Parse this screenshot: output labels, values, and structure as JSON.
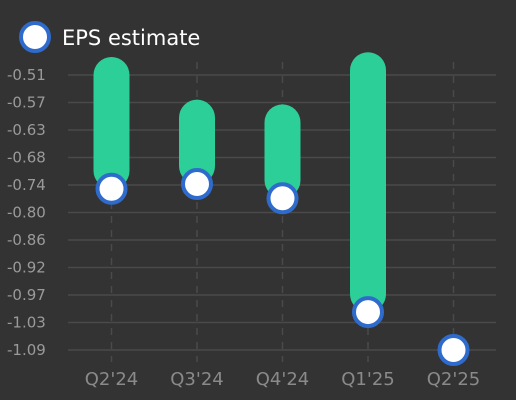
{
  "chart_data": {
    "type": "bar",
    "categories": [
      "Q2'24",
      "Q3'24",
      "Q4'24",
      "Q1'25",
      "Q2'25"
    ],
    "series": [
      {
        "name": "EPS estimate",
        "values": [
          -0.75,
          -0.74,
          -0.77,
          -1.01,
          -1.09
        ]
      },
      {
        "values": [
          -0.51,
          -0.6,
          -0.61,
          -0.5,
          null
        ]
      }
    ],
    "y_ticks": [
      "-0.51",
      "-0.57",
      "-0.63",
      "-0.68",
      "-0.74",
      "-0.80",
      "-0.86",
      "-0.92",
      "-0.97",
      "-1.03",
      "-1.09"
    ],
    "ylim": [
      -1.09,
      -0.51
    ],
    "grid": true,
    "legend_position": "top-left",
    "colors": {
      "background": "#333333",
      "bar": "#2bcf97",
      "marker_fill": "#ffffff",
      "marker_stroke": "#2f6bcc",
      "grid": "#4a4a4a"
    }
  }
}
